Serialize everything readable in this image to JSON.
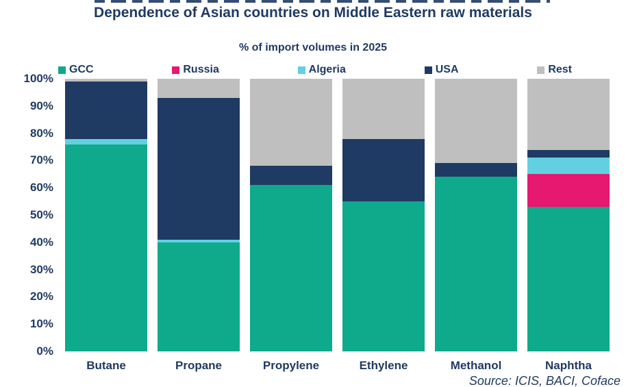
{
  "title": "Dependence of Asian countries on Middle Eastern raw materials",
  "subtitle": "% of import volumes in 2025",
  "source_note": "Source: ICIS, BACI, Coface",
  "colors": {
    "gcc": "#0FA98C",
    "russia": "#E6186F",
    "algeria": "#62D0E0",
    "usa": "#1F3A63",
    "rest": "#BFBFBF",
    "text": "#1F3A63",
    "background": "#FFFFFF"
  },
  "chart_data": {
    "type": "bar",
    "stacked": true,
    "title": "Dependence of Asian countries on Middle Eastern raw materials",
    "subtitle": "% of import volumes in 2025",
    "categories": [
      "Butane",
      "Propane",
      "Propylene",
      "Ethylene",
      "Methanol",
      "Naphtha"
    ],
    "series": [
      {
        "name": "GCC",
        "color": "#0FA98C",
        "values": [
          76,
          40,
          61,
          55,
          64,
          53
        ]
      },
      {
        "name": "Russia",
        "color": "#E6186F",
        "values": [
          0,
          0,
          0,
          0,
          0,
          12
        ]
      },
      {
        "name": "Algeria",
        "color": "#62D0E0",
        "values": [
          2,
          1,
          0,
          0,
          0,
          6
        ]
      },
      {
        "name": "USA",
        "color": "#1F3A63",
        "values": [
          21,
          52,
          7,
          23,
          5,
          3
        ]
      },
      {
        "name": "Rest",
        "color": "#BFBFBF",
        "values": [
          1,
          7,
          32,
          22,
          31,
          26
        ]
      }
    ],
    "xlabel": "",
    "ylabel": "",
    "ylim": [
      0,
      100
    ],
    "ytick_step": 10,
    "ytick_labels": [
      "0%",
      "10%",
      "20%",
      "30%",
      "40%",
      "50%",
      "60%",
      "70%",
      "80%",
      "90%",
      "100%"
    ],
    "legend_position": "top",
    "grid": false,
    "source": "Source: ICIS, BACI, Coface"
  }
}
